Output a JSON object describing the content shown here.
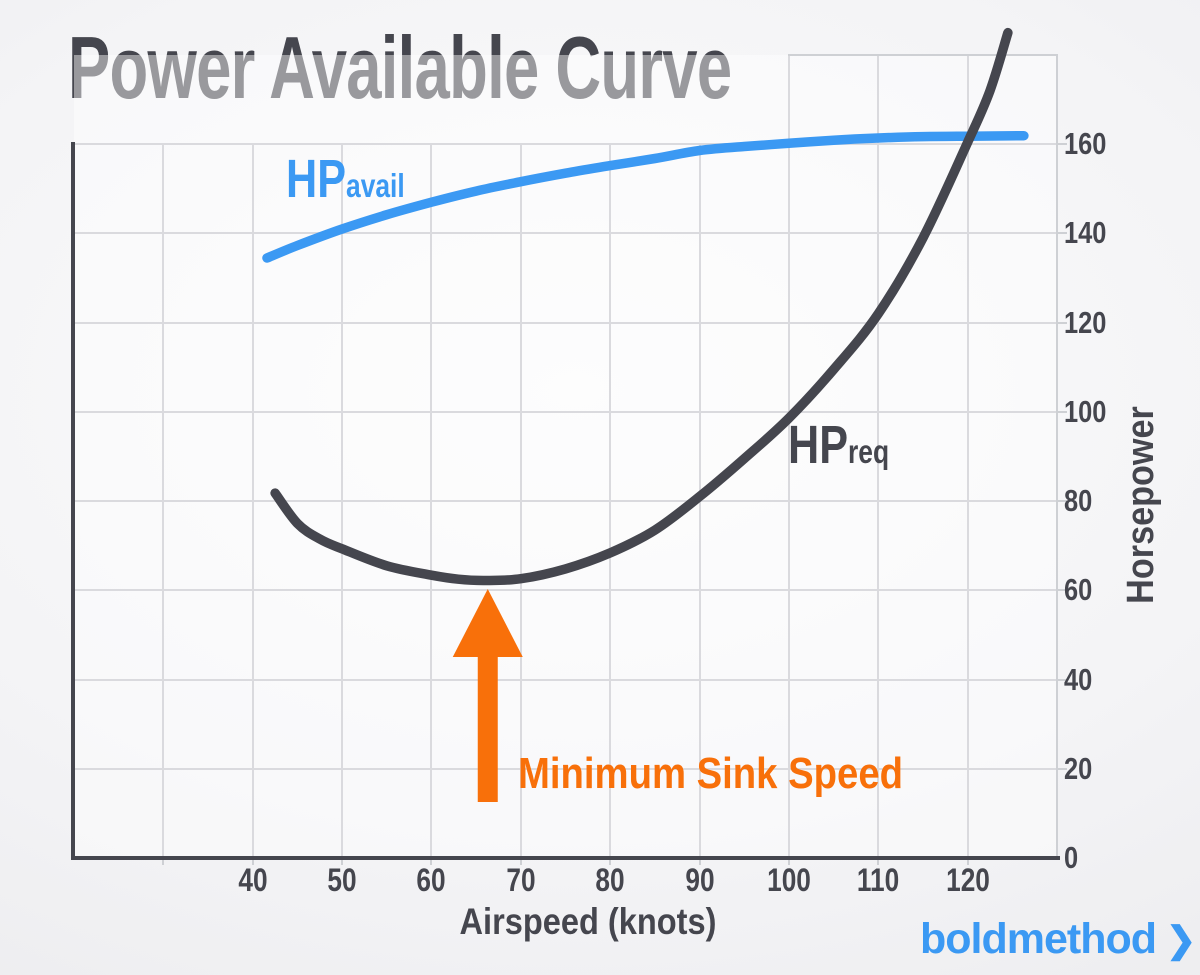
{
  "title": "Power Available Curve",
  "brand": {
    "text": "boldmethod",
    "chevron": "❯",
    "color": "#3b99f3"
  },
  "chart_data": {
    "type": "line",
    "title": "Power Available Curve",
    "xlabel": "Airspeed (knots)",
    "ylabel": "Horsepower",
    "xlim": [
      20,
      130
    ],
    "ylim": [
      0,
      180
    ],
    "x_ticks": [
      40,
      50,
      60,
      70,
      80,
      90,
      100,
      110,
      120
    ],
    "x_gridlines": [
      30,
      40,
      50,
      60,
      70,
      80,
      90,
      100,
      110,
      120
    ],
    "y_ticks": [
      0,
      20,
      40,
      60,
      80,
      100,
      120,
      140,
      160
    ],
    "grid": true,
    "legend_position": "inline-curve-labels",
    "series": [
      {
        "name": "HP_avail",
        "label_main": "HP",
        "label_sub": "avail",
        "color": "#3b99f3",
        "points": [
          [
            41.6,
            134.5
          ],
          [
            45,
            137.3
          ],
          [
            50,
            141
          ],
          [
            55,
            144.2
          ],
          [
            60,
            147
          ],
          [
            65,
            149.5
          ],
          [
            70,
            151.6
          ],
          [
            75,
            153.5
          ],
          [
            80,
            155.2
          ],
          [
            85,
            156.8
          ],
          [
            90,
            158.6
          ],
          [
            95,
            159.5
          ],
          [
            100,
            160.2
          ],
          [
            105,
            160.9
          ],
          [
            110,
            161.4
          ],
          [
            115,
            161.7
          ],
          [
            120,
            161.8
          ],
          [
            126.3,
            161.9
          ]
        ]
      },
      {
        "name": "HP_req",
        "label_main": "HP",
        "label_sub": "req",
        "color": "#45464e",
        "points": [
          [
            42.5,
            81.8
          ],
          [
            45,
            75
          ],
          [
            47.5,
            71.5
          ],
          [
            50,
            69.3
          ],
          [
            55,
            65.5
          ],
          [
            60,
            63.4
          ],
          [
            63,
            62.5
          ],
          [
            66,
            62.2
          ],
          [
            70,
            62.6
          ],
          [
            75,
            64.8
          ],
          [
            80,
            68.4
          ],
          [
            85,
            73.5
          ],
          [
            90,
            81
          ],
          [
            95,
            89.5
          ],
          [
            100,
            98.6
          ],
          [
            105,
            109.5
          ],
          [
            110,
            122
          ],
          [
            115,
            139
          ],
          [
            120,
            160.4
          ],
          [
            122.5,
            172
          ],
          [
            124.5,
            185
          ]
        ]
      }
    ],
    "annotation": {
      "text": "Minimum Sink Speed",
      "x_knots": 66.3,
      "color": "#f8700a",
      "arrow": "vertical-up-to-HP_req-minimum"
    }
  }
}
